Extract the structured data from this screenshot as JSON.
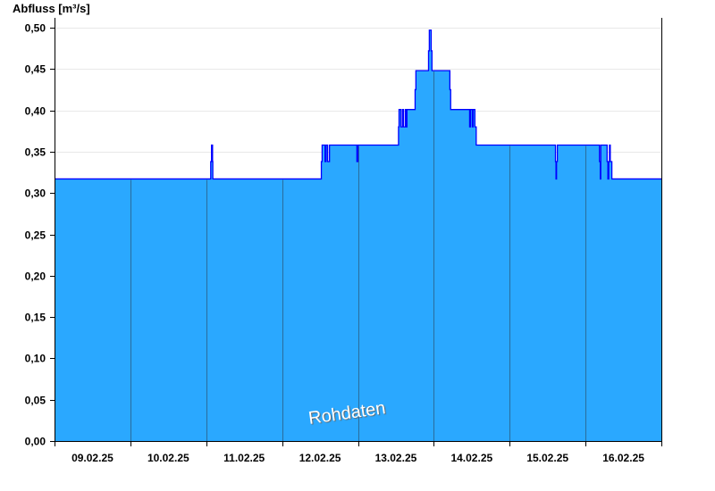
{
  "chart_data": {
    "type": "area",
    "step": true,
    "ylabel": "Abfluss [m³/s]",
    "watermark": "Rohdaten",
    "ylim": [
      0,
      0.5
    ],
    "yticks": [
      "0,00",
      "0,05",
      "0,10",
      "0,15",
      "0,20",
      "0,25",
      "0,30",
      "0,35",
      "0,40",
      "0,45",
      "0,50"
    ],
    "xlim": [
      "2025-02-09T00:00",
      "2025-02-17T00:00"
    ],
    "xtick_labels": [
      "09.02.25",
      "10.02.25",
      "11.02.25",
      "12.02.25",
      "13.02.25",
      "14.02.25",
      "15.02.25",
      "16.02.25"
    ],
    "grid": "horizontal",
    "colors": {
      "fill": "#2aa8ff",
      "line": "#0000ff",
      "day_separator": "#2a6c9c",
      "grid": "#e8e8e8"
    },
    "series": [
      {
        "points": [
          [
            "2025-02-09T00:00",
            0.317
          ],
          [
            "2025-02-11T01:25",
            0.338
          ],
          [
            "2025-02-11T01:40",
            0.358
          ],
          [
            "2025-02-11T02:00",
            0.338
          ],
          [
            "2025-02-11T02:05",
            0.317
          ],
          [
            "2025-02-12T12:25",
            0.338
          ],
          [
            "2025-02-12T12:40",
            0.358
          ],
          [
            "2025-02-12T13:35",
            0.338
          ],
          [
            "2025-02-12T13:55",
            0.358
          ],
          [
            "2025-02-12T14:25",
            0.338
          ],
          [
            "2025-02-12T15:00",
            0.358
          ],
          [
            "2025-02-12T23:40",
            0.338
          ],
          [
            "2025-02-13T00:00",
            0.358
          ],
          [
            "2025-02-13T12:50",
            0.38
          ],
          [
            "2025-02-13T13:00",
            0.401
          ],
          [
            "2025-02-13T13:35",
            0.38
          ],
          [
            "2025-02-13T14:05",
            0.401
          ],
          [
            "2025-02-13T14:25",
            0.38
          ],
          [
            "2025-02-13T15:00",
            0.401
          ],
          [
            "2025-02-13T15:15",
            0.38
          ],
          [
            "2025-02-13T15:30",
            0.401
          ],
          [
            "2025-02-13T18:05",
            0.425
          ],
          [
            "2025-02-13T18:20",
            0.448
          ],
          [
            "2025-02-13T22:20",
            0.472
          ],
          [
            "2025-02-13T22:35",
            0.497
          ],
          [
            "2025-02-13T23:10",
            0.472
          ],
          [
            "2025-02-13T23:25",
            0.448
          ],
          [
            "2025-02-14T05:05",
            0.425
          ],
          [
            "2025-02-14T05:20",
            0.401
          ],
          [
            "2025-02-14T11:20",
            0.38
          ],
          [
            "2025-02-14T11:35",
            0.401
          ],
          [
            "2025-02-14T12:10",
            0.38
          ],
          [
            "2025-02-14T12:25",
            0.401
          ],
          [
            "2025-02-14T13:00",
            0.38
          ],
          [
            "2025-02-14T13:25",
            0.358
          ],
          [
            "2025-02-15T14:30",
            0.338
          ],
          [
            "2025-02-15T14:40",
            0.317
          ],
          [
            "2025-02-15T14:50",
            0.338
          ],
          [
            "2025-02-15T15:05",
            0.358
          ],
          [
            "2025-02-16T04:25",
            0.338
          ],
          [
            "2025-02-16T04:40",
            0.317
          ],
          [
            "2025-02-16T04:50",
            0.358
          ],
          [
            "2025-02-16T06:50",
            0.338
          ],
          [
            "2025-02-16T07:05",
            0.317
          ],
          [
            "2025-02-16T07:20",
            0.338
          ],
          [
            "2025-02-16T07:35",
            0.358
          ],
          [
            "2025-02-16T07:50",
            0.338
          ],
          [
            "2025-02-16T08:20",
            0.317
          ],
          [
            "2025-02-17T00:00",
            0.317
          ]
        ]
      }
    ]
  }
}
